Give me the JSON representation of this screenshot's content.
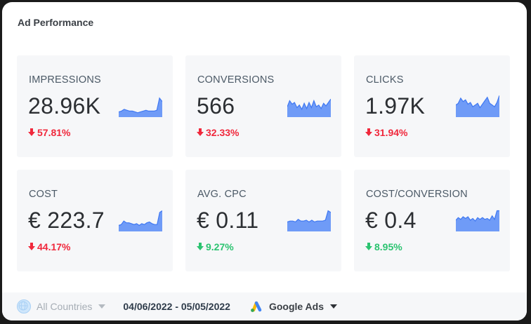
{
  "header": {
    "title": "Ad Performance"
  },
  "colors": {
    "negative": "#f0283c",
    "positive": "#2bc370",
    "spark_fill": "#6f9bf7",
    "spark_line": "#3f78f2"
  },
  "cards": [
    {
      "label": "IMPRESSIONS",
      "value": "28.96K",
      "delta": "57.81%",
      "direction": "down",
      "sentiment": "negative",
      "spark": [
        6,
        7,
        9,
        8,
        7,
        7,
        6,
        5,
        6,
        7,
        8,
        7,
        7,
        7,
        8,
        22,
        18
      ]
    },
    {
      "label": "CONVERSIONS",
      "value": "566",
      "delta": "32.33%",
      "direction": "down",
      "sentiment": "negative",
      "spark": [
        12,
        19,
        15,
        17,
        11,
        14,
        9,
        16,
        10,
        17,
        11,
        19,
        12,
        14,
        10,
        16,
        13,
        17,
        21
      ]
    },
    {
      "label": "CLICKS",
      "value": "1.97K",
      "delta": "31.94%",
      "direction": "down",
      "sentiment": "negative",
      "spark": [
        14,
        16,
        22,
        18,
        20,
        15,
        17,
        12,
        14,
        16,
        11,
        15,
        19,
        23,
        16,
        14,
        12,
        17,
        25
      ]
    },
    {
      "label": "COST",
      "value": "€ 223.7",
      "delta": "44.17%",
      "direction": "down",
      "sentiment": "negative",
      "spark": [
        7,
        8,
        12,
        10,
        10,
        9,
        8,
        9,
        7,
        9,
        8,
        10,
        11,
        9,
        8,
        8,
        22,
        24
      ]
    },
    {
      "label": "AVG. CPC",
      "value": "€ 0.11",
      "delta": "9.27%",
      "direction": "down",
      "sentiment": "positive",
      "spark": [
        11,
        12,
        12,
        11,
        14,
        12,
        12,
        13,
        11,
        13,
        11,
        12,
        12,
        12,
        13,
        24,
        22
      ]
    },
    {
      "label": "COST/CONVERSION",
      "value": "€ 0.4",
      "delta": "8.95%",
      "direction": "down",
      "sentiment": "positive",
      "spark": [
        13,
        16,
        14,
        17,
        15,
        17,
        13,
        15,
        12,
        16,
        14,
        16,
        14,
        15,
        13,
        18,
        14,
        24,
        24
      ]
    }
  ],
  "footer": {
    "countries": "All Countries",
    "date_range": "04/06/2022 - 05/05/2022",
    "source": "Google Ads"
  }
}
